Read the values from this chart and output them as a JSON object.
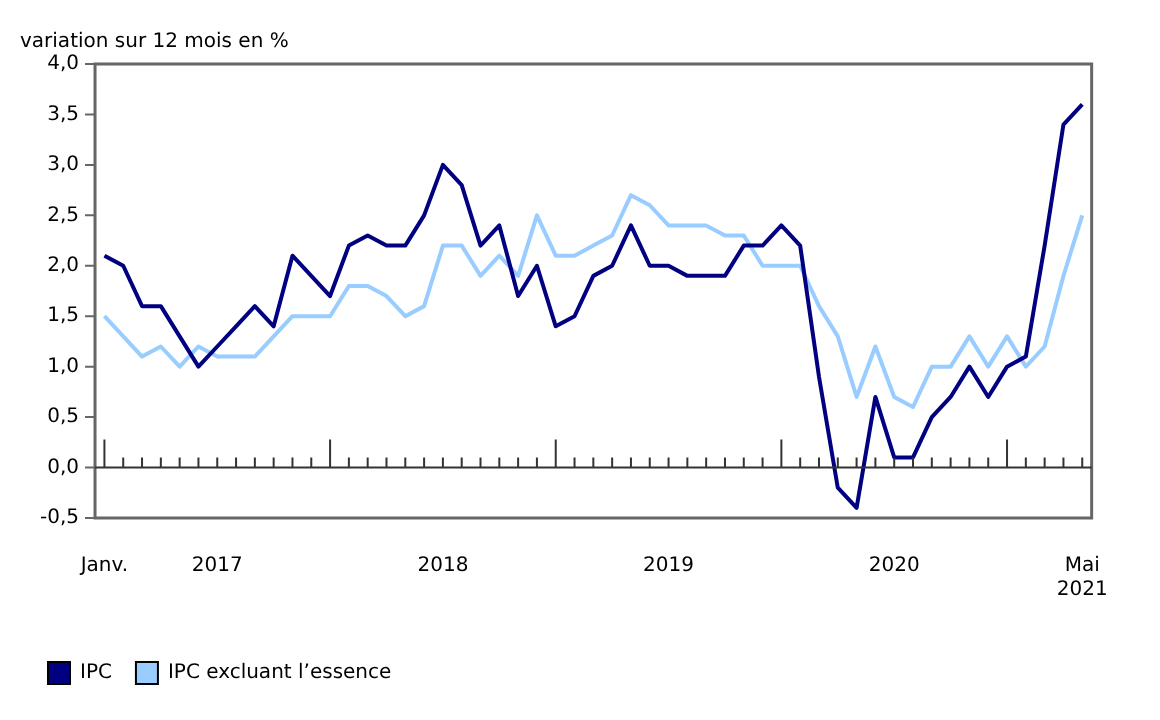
{
  "chart_data": {
    "type": "line",
    "ylabel": "variation sur 12 mois en %",
    "categories": [
      "Janv.",
      null,
      null,
      null,
      null,
      null,
      "2017",
      null,
      null,
      null,
      null,
      null,
      null,
      null,
      null,
      null,
      null,
      null,
      "2018",
      null,
      null,
      null,
      null,
      null,
      null,
      null,
      null,
      null,
      null,
      null,
      "2019",
      null,
      null,
      null,
      null,
      null,
      null,
      null,
      null,
      null,
      null,
      null,
      "2020",
      null,
      null,
      null,
      null,
      null,
      null,
      null,
      null,
      null,
      "Mai 2021"
    ],
    "series": [
      {
        "name": "IPC",
        "color": "#000080",
        "values": [
          2.1,
          2.0,
          1.6,
          1.6,
          1.3,
          1.0,
          1.2,
          1.4,
          1.6,
          1.4,
          2.1,
          1.9,
          1.7,
          2.2,
          2.3,
          2.2,
          2.2,
          2.5,
          3.0,
          2.8,
          2.2,
          2.4,
          1.7,
          2.0,
          1.4,
          1.5,
          1.9,
          2.0,
          2.4,
          2.0,
          2.0,
          1.9,
          1.9,
          1.9,
          2.2,
          2.2,
          2.4,
          2.2,
          0.9,
          -0.2,
          -0.4,
          0.7,
          0.1,
          0.1,
          0.5,
          0.7,
          1.0,
          0.7,
          1.0,
          1.1,
          2.2,
          3.4,
          3.6
        ]
      },
      {
        "name": "IPC excluant l’essence",
        "color": "#99ccff",
        "values": [
          1.5,
          1.3,
          1.1,
          1.2,
          1.0,
          1.2,
          1.1,
          1.1,
          1.1,
          1.3,
          1.5,
          1.5,
          1.5,
          1.8,
          1.8,
          1.7,
          1.5,
          1.6,
          2.2,
          2.2,
          1.9,
          2.1,
          1.9,
          2.5,
          2.1,
          2.1,
          2.2,
          2.3,
          2.7,
          2.6,
          2.4,
          2.4,
          2.4,
          2.3,
          2.3,
          2.0,
          2.0,
          2.0,
          1.6,
          1.3,
          0.7,
          1.2,
          0.7,
          0.6,
          1.0,
          1.0,
          1.3,
          1.0,
          1.3,
          1.0,
          1.2,
          1.9,
          2.5
        ]
      }
    ],
    "ylim": [
      -0.5,
      4.0
    ],
    "yticks": [
      {
        "value": -0.5,
        "label": "-0,5"
      },
      {
        "value": 0,
        "label": "0,0"
      },
      {
        "value": 0.5,
        "label": "0,5"
      },
      {
        "value": 1,
        "label": "1,0"
      },
      {
        "value": 1.5,
        "label": "1,5"
      },
      {
        "value": 2,
        "label": "2,0"
      },
      {
        "value": 2.5,
        "label": "2,5"
      },
      {
        "value": 3,
        "label": "3,0"
      },
      {
        "value": 3.5,
        "label": "3,5"
      },
      {
        "value": 4,
        "label": "4,0"
      }
    ],
    "ref_lines": [
      {
        "axis": "y",
        "value": 0,
        "color": "#333333",
        "line_style": "solid"
      }
    ],
    "grid": false,
    "legend": "bottom",
    "marker": "none",
    "line_style": "solid"
  }
}
